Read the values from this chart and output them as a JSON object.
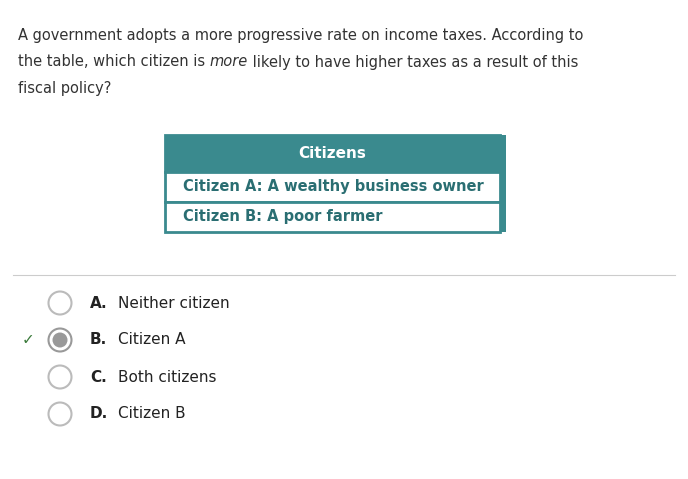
{
  "background_color": "#ffffff",
  "q_line1": "A government adopts a more progressive rate on income taxes. According to",
  "q_line2_pre": "the table, which citizen is ",
  "q_line2_italic": "more",
  "q_line2_post": " likely to have higher taxes as a result of this",
  "q_line3": "fiscal policy?",
  "table_header": "Citizens",
  "table_header_bg": "#3a8a8e",
  "table_header_text_color": "#ffffff",
  "table_row1": "Citizen A: A wealthy business owner",
  "table_row2": "Citizen B: A poor farmer",
  "table_text_color": "#2a6e72",
  "table_border_color": "#3a8a8e",
  "table_row_bg": "#ffffff",
  "divider_color": "#cccccc",
  "options": [
    {
      "label": "A.",
      "text": "Neither citizen",
      "selected": false
    },
    {
      "label": "B.",
      "text": "Citizen A",
      "selected": true
    },
    {
      "label": "C.",
      "text": "Both citizens",
      "selected": false
    },
    {
      "label": "D.",
      "text": "Citizen B",
      "selected": false
    }
  ],
  "circle_edge_color": "#aaaaaa",
  "selected_circle_edge": "#888888",
  "selected_circle_fill": "#aaaaaa",
  "selected_circle_inner": "#888888",
  "checkmark_color": "#3a7a3a",
  "question_fontsize": 10.5,
  "option_fontsize": 11,
  "table_fontsize": 10.5
}
